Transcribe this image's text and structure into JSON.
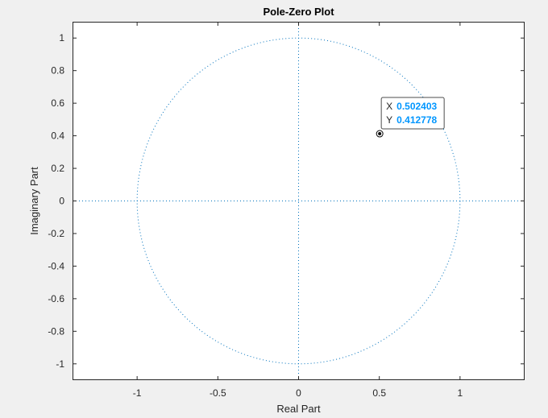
{
  "chart_data": {
    "type": "scatter",
    "title": "Pole-Zero Plot",
    "xlabel": "Real Part",
    "ylabel": "Imaginary Part",
    "xlim": [
      -1.4,
      1.4
    ],
    "ylim": [
      -1.1,
      1.1
    ],
    "x_ticks": [
      -1,
      -0.5,
      0,
      0.5,
      1
    ],
    "y_ticks": [
      -1,
      -0.8,
      -0.6,
      -0.4,
      -0.2,
      0,
      0.2,
      0.4,
      0.6,
      0.8,
      1
    ],
    "x_tick_labels": [
      "-1",
      "-0.5",
      "0",
      "0.5",
      "1"
    ],
    "y_tick_labels": [
      "-1",
      "-0.8",
      "-0.6",
      "-0.4",
      "-0.2",
      "0",
      "0.2",
      "0.4",
      "0.6",
      "0.8",
      "1"
    ],
    "grid": false,
    "unit_circle": {
      "center": [
        0,
        0
      ],
      "radius": 1,
      "line_style": "dotted"
    },
    "reference_lines": {
      "horizontal_at_y": 0,
      "vertical_at_x": 0,
      "line_style": "dotted"
    },
    "points": [
      {
        "x": 0.502403,
        "y": 0.412778,
        "marker": "circle"
      }
    ],
    "datatip": {
      "x_label": "X",
      "x_value": "0.502403",
      "y_label": "Y",
      "y_value": "0.412778"
    },
    "colors": {
      "background": "#f0f0f0",
      "axes_background": "#ffffff",
      "axes_line": "#262626",
      "series": "#0072bd",
      "tip_value": "#0096ff",
      "tip_border": "#4d4d4d"
    }
  }
}
